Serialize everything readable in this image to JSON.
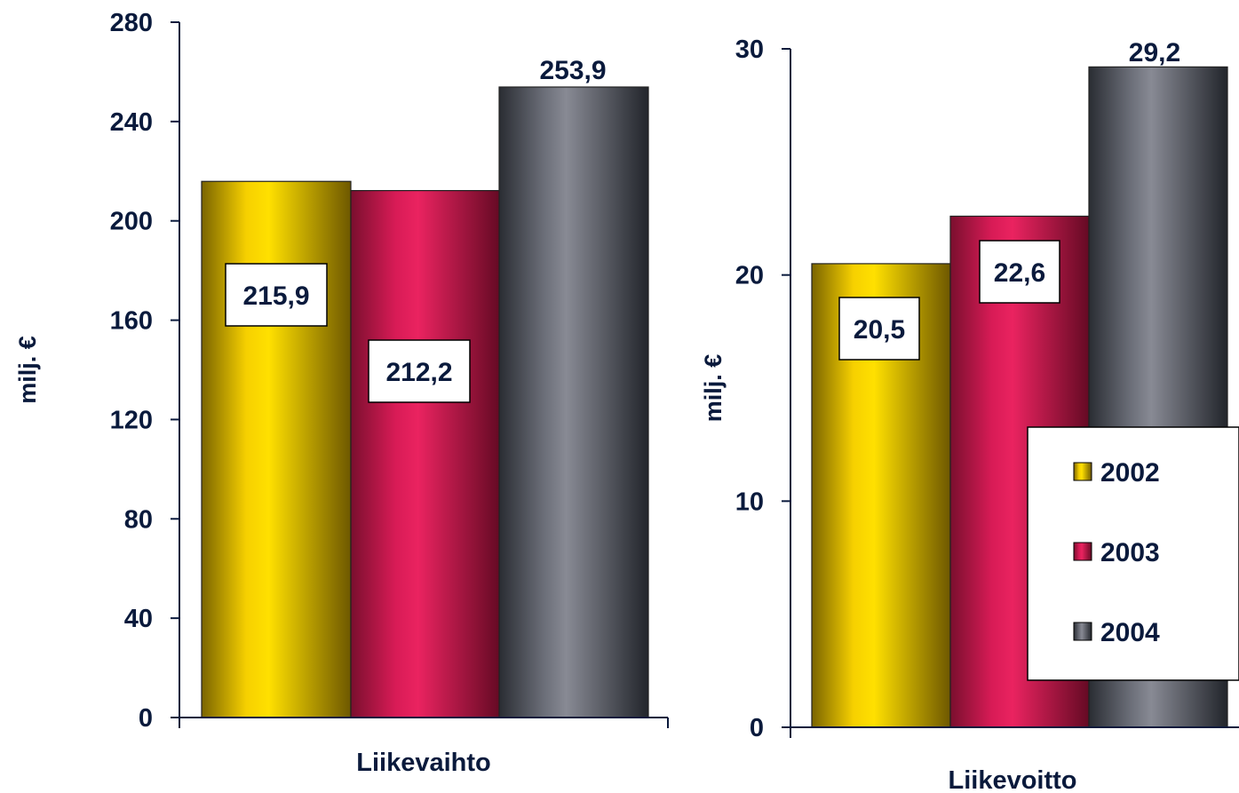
{
  "series_colors": {
    "2002": [
      "#7a6400",
      "#f6d000",
      "#ffe000",
      "#6e5800"
    ],
    "2003": [
      "#7a0f2e",
      "#d81b56",
      "#ea2360",
      "#650a24"
    ],
    "2004": [
      "#2a2d33",
      "#6b6e78",
      "#888a94",
      "#22252b"
    ]
  },
  "legend": {
    "items": [
      {
        "label": "2002",
        "swatch": "#e6c200"
      },
      {
        "label": "2003",
        "swatch": "#d81b56"
      },
      {
        "label": "2004",
        "swatch": "#6e707a"
      }
    ]
  },
  "chart_data": [
    {
      "type": "bar",
      "categories": [
        "Liikevaihto"
      ],
      "xlabel": "Liikevaihto",
      "ylabel": "milj. €",
      "ylim": [
        0,
        280
      ],
      "yticks": [
        0,
        40,
        80,
        120,
        160,
        200,
        240,
        280
      ],
      "series": [
        {
          "name": "2002",
          "values": [
            215.9
          ],
          "label": "215,9"
        },
        {
          "name": "2003",
          "values": [
            212.2
          ],
          "label": "212,2"
        },
        {
          "name": "2004",
          "values": [
            253.9
          ],
          "label": "253,9"
        }
      ],
      "grid": false
    },
    {
      "type": "bar",
      "categories": [
        "Liikevoitto"
      ],
      "xlabel": "Liikevoitto",
      "ylabel": "milj. €",
      "ylim": [
        0,
        30
      ],
      "yticks": [
        0,
        10,
        20,
        30
      ],
      "series": [
        {
          "name": "2002",
          "values": [
            20.5
          ],
          "label": "20,5"
        },
        {
          "name": "2003",
          "values": [
            22.6
          ],
          "label": "22,6"
        },
        {
          "name": "2004",
          "values": [
            29.2
          ],
          "label": "29,2"
        }
      ],
      "grid": false,
      "legend_position": "bottom-right"
    }
  ]
}
